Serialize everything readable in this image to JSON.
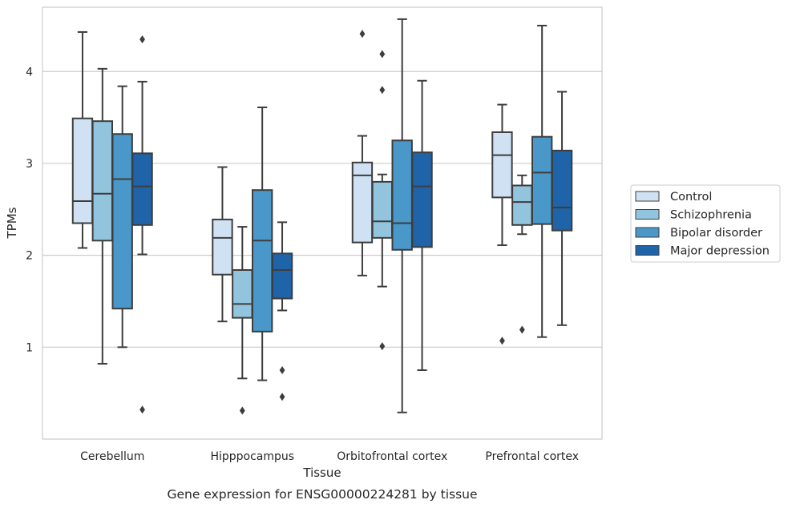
{
  "chart_data": {
    "type": "box",
    "caption": "Gene expression for ENSG00000224281 by tissue",
    "xlabel": "Tissue",
    "ylabel": "TPMs",
    "ylim": [
      0.0,
      4.7
    ],
    "yticks": [
      1,
      2,
      3,
      4
    ],
    "grid": "horizontal",
    "legend_position": "right",
    "categories": [
      "Cerebellum",
      "Hipppocampus",
      "Orbitofrontal cortex",
      "Prefrontal cortex"
    ],
    "series": [
      {
        "name": "Control",
        "color": "#cfe1f2",
        "boxes": [
          {
            "whisker_low": 2.08,
            "q1": 2.35,
            "median": 2.59,
            "q3": 3.49,
            "whisker_high": 4.43,
            "outliers": []
          },
          {
            "whisker_low": 1.28,
            "q1": 1.79,
            "median": 2.19,
            "q3": 2.39,
            "whisker_high": 2.96,
            "outliers": []
          },
          {
            "whisker_low": 1.78,
            "q1": 2.14,
            "median": 2.87,
            "q3": 3.01,
            "whisker_high": 3.3,
            "outliers": [
              4.41
            ]
          },
          {
            "whisker_low": 2.11,
            "q1": 2.63,
            "median": 3.09,
            "q3": 3.34,
            "whisker_high": 3.64,
            "outliers": [
              1.07
            ]
          }
        ]
      },
      {
        "name": "Schizophrenia",
        "color": "#93c4de",
        "boxes": [
          {
            "whisker_low": 0.82,
            "q1": 2.16,
            "median": 2.67,
            "q3": 3.46,
            "whisker_high": 4.03,
            "outliers": []
          },
          {
            "whisker_low": 0.66,
            "q1": 1.32,
            "median": 1.47,
            "q3": 1.84,
            "whisker_high": 2.31,
            "outliers": [
              0.31
            ]
          },
          {
            "whisker_low": 1.66,
            "q1": 2.19,
            "median": 2.37,
            "q3": 2.8,
            "whisker_high": 2.88,
            "outliers": [
              1.01,
              3.8,
              4.19
            ]
          },
          {
            "whisker_low": 2.23,
            "q1": 2.33,
            "median": 2.58,
            "q3": 2.76,
            "whisker_high": 2.87,
            "outliers": [
              1.19
            ]
          }
        ]
      },
      {
        "name": "Bipolar disorder",
        "color": "#4a98c9",
        "boxes": [
          {
            "whisker_low": 1.0,
            "q1": 1.42,
            "median": 2.83,
            "q3": 3.32,
            "whisker_high": 3.84,
            "outliers": []
          },
          {
            "whisker_low": 0.64,
            "q1": 1.17,
            "median": 2.16,
            "q3": 2.71,
            "whisker_high": 3.61,
            "outliers": []
          },
          {
            "whisker_low": 0.29,
            "q1": 2.06,
            "median": 2.35,
            "q3": 3.25,
            "whisker_high": 4.57,
            "outliers": []
          },
          {
            "whisker_low": 1.11,
            "q1": 2.34,
            "median": 2.9,
            "q3": 3.29,
            "whisker_high": 4.5,
            "outliers": []
          }
        ]
      },
      {
        "name": "Major depression",
        "color": "#1f63a8",
        "boxes": [
          {
            "whisker_low": 2.01,
            "q1": 2.33,
            "median": 2.75,
            "q3": 3.11,
            "whisker_high": 3.89,
            "outliers": [
              0.32,
              4.35
            ]
          },
          {
            "whisker_low": 1.4,
            "q1": 1.53,
            "median": 1.84,
            "q3": 2.02,
            "whisker_high": 2.36,
            "outliers": [
              0.46,
              0.75
            ]
          },
          {
            "whisker_low": 0.75,
            "q1": 2.09,
            "median": 2.75,
            "q3": 3.12,
            "whisker_high": 3.9,
            "outliers": []
          },
          {
            "whisker_low": 1.24,
            "q1": 2.27,
            "median": 2.52,
            "q3": 3.14,
            "whisker_high": 3.78,
            "outliers": []
          }
        ]
      }
    ]
  }
}
